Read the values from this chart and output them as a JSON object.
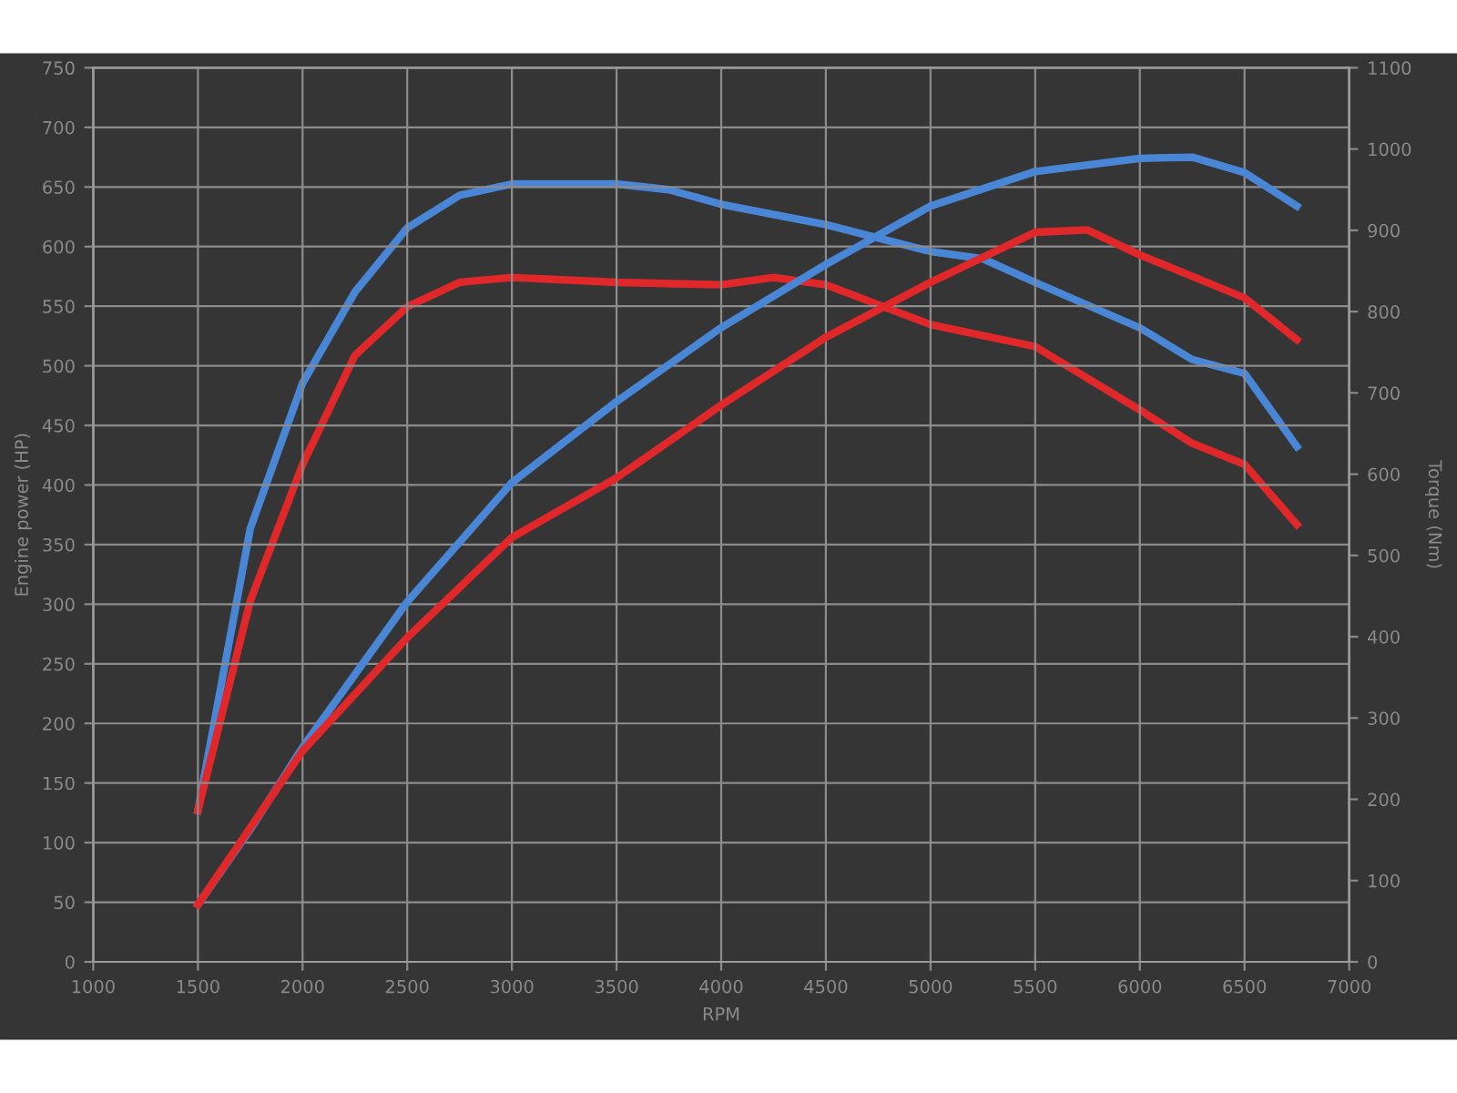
{
  "chart_data": {
    "type": "line",
    "xlabel": "RPM",
    "ylabel": "Engine power (HP)",
    "y2label": "Torque (Nm)",
    "xlim": [
      1000,
      7000
    ],
    "xticks": [
      1000,
      1500,
      2000,
      2500,
      3000,
      3500,
      4000,
      4500,
      5000,
      5500,
      6000,
      6500,
      7000
    ],
    "ylim": [
      0,
      750
    ],
    "yticks": [
      0,
      50,
      100,
      150,
      200,
      250,
      300,
      350,
      400,
      450,
      500,
      550,
      600,
      650,
      700,
      750
    ],
    "y2lim": [
      0,
      1100
    ],
    "y2ticks": [
      0,
      100,
      200,
      300,
      400,
      500,
      600,
      700,
      800,
      900,
      1000,
      1100
    ],
    "grid": true,
    "marker": "none",
    "line_style": "solid",
    "series": [
      {
        "color": "#4a86d6",
        "x": [
          1500,
          1750,
          2000,
          2500,
          3000,
          3500,
          4000,
          4500,
          5000,
          5500,
          6000,
          6250,
          6500,
          6750
        ],
        "values": [
          48,
          111,
          180,
          302,
          402,
          470,
          532,
          585,
          634,
          663,
          674,
          675,
          662,
          634
        ]
      },
      {
        "color": "#e0282a",
        "x": [
          1500,
          2000,
          2500,
          3000,
          3500,
          4000,
          4500,
          5000,
          5500,
          5750,
          6000,
          6500,
          6750
        ],
        "values": [
          48,
          177,
          272,
          356,
          406,
          467,
          524,
          570,
          612,
          614,
          593,
          557,
          522
        ]
      },
      {
        "color": "#4a86d6",
        "axis": "y2",
        "x": [
          1500,
          1750,
          2000,
          2250,
          2500,
          2750,
          3000,
          3500,
          3750,
          4000,
          4500,
          5000,
          5250,
          5500,
          6000,
          6250,
          6500,
          6750
        ],
        "values": [
          186,
          533,
          712,
          824,
          903,
          943,
          957,
          957,
          950,
          932,
          907,
          874,
          865,
          836,
          780,
          741,
          724,
          634
        ]
      },
      {
        "color": "#e0282a",
        "axis": "y2",
        "x": [
          1500,
          1750,
          2000,
          2250,
          2500,
          2750,
          3000,
          3500,
          4000,
          4250,
          4500,
          5000,
          5500,
          6000,
          6250,
          6500,
          6750
        ],
        "values": [
          186,
          444,
          612,
          746,
          806,
          836,
          842,
          836,
          833,
          842,
          833,
          784,
          757,
          679,
          638,
          612,
          538
        ]
      }
    ]
  }
}
